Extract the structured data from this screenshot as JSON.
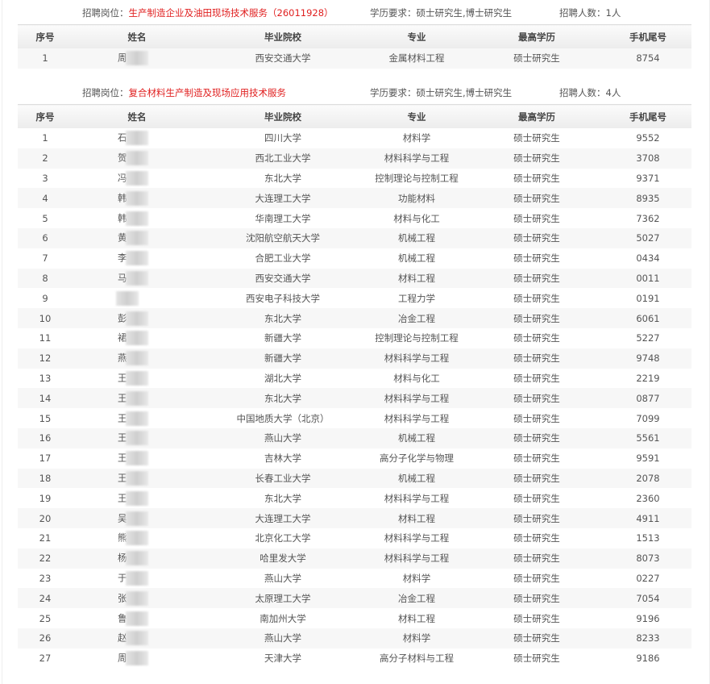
{
  "columns": [
    "序号",
    "姓名",
    "毕业院校",
    "专业",
    "最高学历",
    "手机尾号"
  ],
  "sections": [
    {
      "post_label": "招聘岗位：",
      "post_name": "生产制造企业及油田现场技术服务（26011928）",
      "edu_label": "学历要求：",
      "edu_value": "硕士研究生,博士研究生",
      "count_label": "招聘人数：",
      "count_value": "1人",
      "rows": [
        {
          "no": "1",
          "name": "周",
          "school": "西安交通大学",
          "major": "金属材料工程",
          "degree": "硕士研究生",
          "phone": "8754"
        }
      ]
    },
    {
      "post_label": "招聘岗位：",
      "post_name": "复合材料生产制造及现场应用技术服务",
      "edu_label": "学历要求：",
      "edu_value": "硕士研究生,博士研究生",
      "count_label": "招聘人数：",
      "count_value": "4人",
      "rows": [
        {
          "no": "1",
          "name": "石",
          "school": "四川大学",
          "major": "材料学",
          "degree": "硕士研究生",
          "phone": "9552"
        },
        {
          "no": "2",
          "name": "贺",
          "school": "西北工业大学",
          "major": "材料科学与工程",
          "degree": "硕士研究生",
          "phone": "3708"
        },
        {
          "no": "3",
          "name": "冯",
          "school": "东北大学",
          "major": "控制理论与控制工程",
          "degree": "硕士研究生",
          "phone": "9371"
        },
        {
          "no": "4",
          "name": "韩",
          "school": "大连理工大学",
          "major": "功能材料",
          "degree": "硕士研究生",
          "phone": "8935"
        },
        {
          "no": "5",
          "name": "韩",
          "school": "华南理工大学",
          "major": "材料与化工",
          "degree": "硕士研究生",
          "phone": "7362"
        },
        {
          "no": "6",
          "name": "黄",
          "school": "沈阳航空航天大学",
          "major": "机械工程",
          "degree": "硕士研究生",
          "phone": "5027"
        },
        {
          "no": "7",
          "name": "李",
          "school": "合肥工业大学",
          "major": "机械工程",
          "degree": "硕士研究生",
          "phone": "0434"
        },
        {
          "no": "8",
          "name": "马",
          "school": "西安交通大学",
          "major": "材料工程",
          "degree": "硕士研究生",
          "phone": "0011"
        },
        {
          "no": "9",
          "name": "",
          "school": "西安电子科技大学",
          "major": "工程力学",
          "degree": "硕士研究生",
          "phone": "0191"
        },
        {
          "no": "10",
          "name": "彭",
          "school": "东北大学",
          "major": "冶金工程",
          "degree": "硕士研究生",
          "phone": "6061"
        },
        {
          "no": "11",
          "name": "裙",
          "school": "新疆大学",
          "major": "控制理论与控制工程",
          "degree": "硕士研究生",
          "phone": "5227"
        },
        {
          "no": "12",
          "name": "燕",
          "school": "新疆大学",
          "major": "材料科学与工程",
          "degree": "硕士研究生",
          "phone": "9748"
        },
        {
          "no": "13",
          "name": "王",
          "school": "湖北大学",
          "major": "材料与化工",
          "degree": "硕士研究生",
          "phone": "2219"
        },
        {
          "no": "14",
          "name": "王",
          "school": "东北大学",
          "major": "材料科学与工程",
          "degree": "硕士研究生",
          "phone": "0877"
        },
        {
          "no": "15",
          "name": "王",
          "school": "中国地质大学（北京）",
          "major": "材料科学与工程",
          "degree": "硕士研究生",
          "phone": "7099"
        },
        {
          "no": "16",
          "name": "王",
          "school": "燕山大学",
          "major": "机械工程",
          "degree": "硕士研究生",
          "phone": "5561"
        },
        {
          "no": "17",
          "name": "王",
          "school": "吉林大学",
          "major": "高分子化学与物理",
          "degree": "硕士研究生",
          "phone": "9591"
        },
        {
          "no": "18",
          "name": "王",
          "school": "长春工业大学",
          "major": "机械工程",
          "degree": "硕士研究生",
          "phone": "2078"
        },
        {
          "no": "19",
          "name": "王",
          "school": "东北大学",
          "major": "材料科学与工程",
          "degree": "硕士研究生",
          "phone": "2360"
        },
        {
          "no": "20",
          "name": "吴",
          "school": "大连理工大学",
          "major": "材料工程",
          "degree": "硕士研究生",
          "phone": "4911"
        },
        {
          "no": "21",
          "name": "熊",
          "school": "北京化工大学",
          "major": "材料科学与工程",
          "degree": "硕士研究生",
          "phone": "1513"
        },
        {
          "no": "22",
          "name": "杨",
          "school": "哈里发大学",
          "major": "材料科学与工程",
          "degree": "硕士研究生",
          "phone": "8073"
        },
        {
          "no": "23",
          "name": "于",
          "school": "燕山大学",
          "major": "材料学",
          "degree": "硕士研究生",
          "phone": "0227"
        },
        {
          "no": "24",
          "name": "张",
          "school": "太原理工大学",
          "major": "冶金工程",
          "degree": "硕士研究生",
          "phone": "7054"
        },
        {
          "no": "25",
          "name": "鲁",
          "school": "南加州大学",
          "major": "材料工程",
          "degree": "硕士研究生",
          "phone": "9196"
        },
        {
          "no": "26",
          "name": "赵",
          "school": "燕山大学",
          "major": "材料学",
          "degree": "硕士研究生",
          "phone": "8233"
        },
        {
          "no": "27",
          "name": "周",
          "school": "天津大学",
          "major": "高分子材料与工程",
          "degree": "硕士研究生",
          "phone": "9186"
        }
      ]
    }
  ]
}
